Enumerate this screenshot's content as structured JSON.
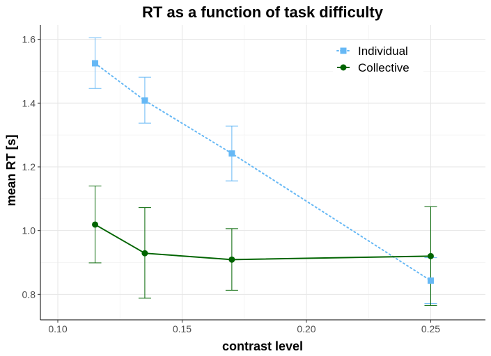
{
  "chart_data": {
    "type": "line",
    "title": "RT as a function of task difficulty",
    "xlabel": "contrast level",
    "ylabel": "mean RT [s]",
    "xlim": [
      0.093,
      0.272
    ],
    "ylim": [
      0.72,
      1.645
    ],
    "x_ticks": [
      0.1,
      0.15,
      0.2,
      0.25
    ],
    "x_tick_labels": [
      "0.10",
      "0.15",
      "0.20",
      "0.25"
    ],
    "y_ticks": [
      0.8,
      1.0,
      1.2,
      1.4,
      1.6
    ],
    "y_tick_labels": [
      "0.8",
      "1.0",
      "1.2",
      "1.4",
      "1.6"
    ],
    "grid": true,
    "legend_position": "top-right",
    "series": [
      {
        "name": "Individual",
        "color": "#66b8f5",
        "line_style": "dotted",
        "marker": "square",
        "x": [
          0.115,
          0.135,
          0.17,
          0.25
        ],
        "y": [
          1.525,
          1.408,
          1.242,
          0.843
        ],
        "err_low": [
          1.446,
          1.337,
          1.156,
          0.771
        ],
        "err_high": [
          1.605,
          1.481,
          1.328,
          0.915
        ]
      },
      {
        "name": "Collective",
        "color": "#006400",
        "line_style": "solid",
        "marker": "circle",
        "x": [
          0.115,
          0.135,
          0.17,
          0.25
        ],
        "y": [
          1.019,
          0.929,
          0.909,
          0.92
        ],
        "err_low": [
          0.899,
          0.788,
          0.813,
          0.765
        ],
        "err_high": [
          1.14,
          1.072,
          1.006,
          1.075
        ]
      }
    ]
  }
}
